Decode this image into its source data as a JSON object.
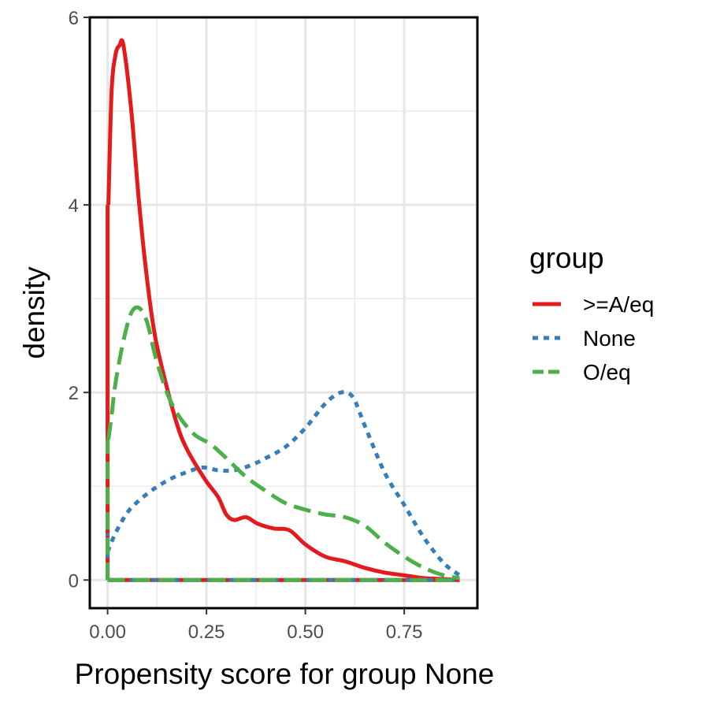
{
  "chart_data": {
    "type": "line",
    "title": "",
    "xlabel": "Propensity score for group None",
    "ylabel": "density",
    "xlim": [
      -0.045,
      0.935
    ],
    "ylim": [
      -0.3,
      6.0
    ],
    "xticks": [
      0.0,
      0.25,
      0.5,
      0.75
    ],
    "xtick_labels": [
      "0.00",
      "0.25",
      "0.50",
      "0.75"
    ],
    "yticks": [
      0,
      2,
      4,
      6
    ],
    "ytick_labels": [
      "0",
      "2",
      "4",
      "6"
    ],
    "grid": true,
    "legend_title": "group",
    "legend_position": "right",
    "series": [
      {
        "name": ">=A/eq",
        "color": "#e41a1c",
        "dash": "solid",
        "range": [
          0.0,
          0.89
        ],
        "points": [
          [
            0.0,
            0.0
          ],
          [
            0.002,
            4.0
          ],
          [
            0.01,
            5.2
          ],
          [
            0.02,
            5.6
          ],
          [
            0.03,
            5.7
          ],
          [
            0.04,
            5.7
          ],
          [
            0.06,
            5.0
          ],
          [
            0.08,
            4.0
          ],
          [
            0.1,
            3.2
          ],
          [
            0.12,
            2.6
          ],
          [
            0.15,
            2.05
          ],
          [
            0.18,
            1.6
          ],
          [
            0.2,
            1.4
          ],
          [
            0.22,
            1.25
          ],
          [
            0.25,
            1.05
          ],
          [
            0.28,
            0.88
          ],
          [
            0.3,
            0.7
          ],
          [
            0.32,
            0.64
          ],
          [
            0.35,
            0.67
          ],
          [
            0.38,
            0.6
          ],
          [
            0.42,
            0.55
          ],
          [
            0.46,
            0.53
          ],
          [
            0.5,
            0.38
          ],
          [
            0.55,
            0.25
          ],
          [
            0.6,
            0.2
          ],
          [
            0.65,
            0.13
          ],
          [
            0.7,
            0.08
          ],
          [
            0.75,
            0.05
          ],
          [
            0.8,
            0.02
          ],
          [
            0.85,
            0.01
          ],
          [
            0.89,
            0.0
          ]
        ]
      },
      {
        "name": "None",
        "color": "#377eb8",
        "dash": "dotted",
        "range": [
          0.0,
          0.89
        ],
        "points": [
          [
            0.0,
            0.3
          ],
          [
            0.02,
            0.5
          ],
          [
            0.05,
            0.72
          ],
          [
            0.08,
            0.85
          ],
          [
            0.12,
            0.98
          ],
          [
            0.16,
            1.08
          ],
          [
            0.2,
            1.15
          ],
          [
            0.24,
            1.2
          ],
          [
            0.28,
            1.17
          ],
          [
            0.32,
            1.17
          ],
          [
            0.36,
            1.22
          ],
          [
            0.4,
            1.3
          ],
          [
            0.45,
            1.42
          ],
          [
            0.5,
            1.62
          ],
          [
            0.55,
            1.88
          ],
          [
            0.59,
            2.0
          ],
          [
            0.62,
            1.95
          ],
          [
            0.65,
            1.65
          ],
          [
            0.7,
            1.15
          ],
          [
            0.75,
            0.8
          ],
          [
            0.8,
            0.45
          ],
          [
            0.85,
            0.18
          ],
          [
            0.89,
            0.05
          ]
        ]
      },
      {
        "name": "O/eq",
        "color": "#4daf4a",
        "dash": "dashed",
        "range": [
          0.0,
          0.89
        ],
        "points": [
          [
            0.0,
            0.0
          ],
          [
            0.002,
            1.5
          ],
          [
            0.01,
            1.75
          ],
          [
            0.02,
            2.1
          ],
          [
            0.04,
            2.55
          ],
          [
            0.06,
            2.85
          ],
          [
            0.08,
            2.9
          ],
          [
            0.1,
            2.75
          ],
          [
            0.12,
            2.4
          ],
          [
            0.15,
            2.0
          ],
          [
            0.18,
            1.75
          ],
          [
            0.22,
            1.55
          ],
          [
            0.26,
            1.45
          ],
          [
            0.3,
            1.3
          ],
          [
            0.35,
            1.1
          ],
          [
            0.4,
            0.95
          ],
          [
            0.45,
            0.82
          ],
          [
            0.5,
            0.75
          ],
          [
            0.55,
            0.7
          ],
          [
            0.6,
            0.67
          ],
          [
            0.65,
            0.58
          ],
          [
            0.7,
            0.4
          ],
          [
            0.75,
            0.25
          ],
          [
            0.8,
            0.13
          ],
          [
            0.85,
            0.05
          ],
          [
            0.89,
            0.02
          ]
        ]
      }
    ]
  }
}
